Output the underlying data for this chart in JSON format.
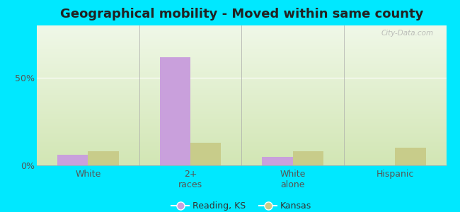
{
  "title": "Geographical mobility - Moved within same county",
  "categories": [
    "White",
    "2+\nraces",
    "White\nalone",
    "Hispanic"
  ],
  "reading_ks": [
    6,
    62,
    5,
    0
  ],
  "kansas": [
    8,
    13,
    8,
    10
  ],
  "reading_color": "#c9a0dc",
  "kansas_color": "#c8cc8a",
  "bar_width": 0.3,
  "ylim": [
    0,
    80
  ],
  "yticks": [
    0,
    50
  ],
  "ytick_labels": [
    "0%",
    "50%"
  ],
  "bg_color_tl": "#f0f8e8",
  "bg_color_tr": "#e8f5d0",
  "bg_color_bl": "#d8efc0",
  "bg_color_br": "#c8e8a8",
  "outer_bg": "#00e8ff",
  "legend_reading": "Reading, KS",
  "legend_kansas": "Kansas",
  "title_fontsize": 13,
  "tick_fontsize": 9,
  "legend_fontsize": 9,
  "grid_color": "#ccddaa",
  "separator_color": "#bbccaa",
  "watermark_text": "City-Data.com"
}
